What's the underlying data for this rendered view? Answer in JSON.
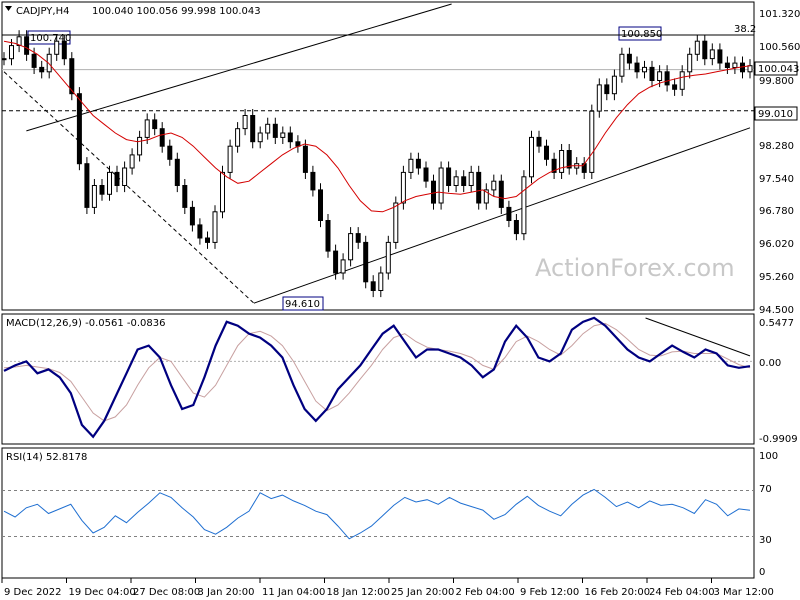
{
  "colors": {
    "background": "#ffffff",
    "candle": "#000000",
    "ma_line": "#d40000",
    "macd_line": "#000080",
    "macd_signal": "#c8a0a0",
    "rsi_line": "#1f6fd1",
    "level_box": "#000080",
    "watermark": "#c8c8c8"
  },
  "header": {
    "collapse_icon": "triangle-down-icon",
    "symbol": "CADJPY,H4",
    "ohlc": "100.040 100.056 99.998 100.043"
  },
  "watermark": "ActionForex.com",
  "chart_data": [
    {
      "type": "candlestick",
      "name": "price",
      "ylim": [
        94.5,
        101.45
      ],
      "yticks": [
        "101.320",
        "100.560",
        "99.800",
        "99.010",
        "98.280",
        "97.540",
        "96.780",
        "96.020",
        "95.260",
        "94.500"
      ],
      "current_price": "100.043",
      "level_labels": [
        "100.740",
        "100.850",
        "99.010",
        "94.610"
      ],
      "fib_label": "38.2",
      "fib_level": 100.74,
      "support_level": 99.01,
      "close_series": [
        100.2,
        100.5,
        100.7,
        100.3,
        100.0,
        99.9,
        100.3,
        100.6,
        100.2,
        99.4,
        97.8,
        96.8,
        97.3,
        97.1,
        97.6,
        97.3,
        97.7,
        98.0,
        98.4,
        98.8,
        98.6,
        98.2,
        97.9,
        97.3,
        96.8,
        96.4,
        96.1,
        96.0,
        96.7,
        97.6,
        98.2,
        98.6,
        98.9,
        98.3,
        98.5,
        98.7,
        98.4,
        98.5,
        98.3,
        98.2,
        97.6,
        97.2,
        96.5,
        95.8,
        95.3,
        95.6,
        96.2,
        96.0,
        95.1,
        94.9,
        95.3,
        96.0,
        96.9,
        97.6,
        97.9,
        97.7,
        97.4,
        96.9,
        97.7,
        97.3,
        97.5,
        97.3,
        97.6,
        96.9,
        97.2,
        97.4,
        96.8,
        96.5,
        96.2,
        97.5,
        98.4,
        98.2,
        97.9,
        97.6,
        98.1,
        97.7,
        97.8,
        97.6,
        99.0,
        99.6,
        99.4,
        99.8,
        100.3,
        100.1,
        99.9,
        100.0,
        99.7,
        99.9,
        99.6,
        99.5,
        99.9,
        100.3,
        100.6,
        100.2,
        100.4,
        100.1,
        100.0,
        100.1,
        99.9,
        100.04
      ],
      "ma_series": [
        100.6,
        100.55,
        100.45,
        100.3,
        100.1,
        99.8,
        99.5,
        99.2,
        98.9,
        98.7,
        98.5,
        98.35,
        98.3,
        98.35,
        98.45,
        98.5,
        98.4,
        98.2,
        97.95,
        97.7,
        97.5,
        97.35,
        97.4,
        97.6,
        97.8,
        98.0,
        98.15,
        98.25,
        98.2,
        98.0,
        97.7,
        97.3,
        96.95,
        96.72,
        96.7,
        96.8,
        96.95,
        97.05,
        97.1,
        97.15,
        97.12,
        97.1,
        97.15,
        97.2,
        97.05,
        97.0,
        97.05,
        97.25,
        97.45,
        97.6,
        97.7,
        97.75,
        97.75,
        98.1,
        98.5,
        98.85,
        99.15,
        99.4,
        99.55,
        99.65,
        99.72,
        99.78,
        99.82,
        99.85,
        99.9,
        99.95,
        100.0,
        100.04
      ],
      "trendlines": {
        "upper_channel": [
          [
            3,
            98.55
          ],
          [
            60,
            101.45
          ]
        ],
        "lower_channel": [
          [
            33.5,
            94.61
          ],
          [
            100,
            98.62
          ]
        ],
        "falling_dashed": [
          [
            0,
            99.9
          ],
          [
            33.5,
            94.61
          ]
        ]
      }
    },
    {
      "type": "line",
      "name": "MACD",
      "title": "MACD(12,26,9) -0.0561 -0.0836",
      "ylim": [
        -0.9909,
        0.5477
      ],
      "yticks": [
        "0.5477",
        "0.00",
        "-0.9909"
      ],
      "macd": [
        -0.12,
        -0.05,
        0.0,
        -0.15,
        -0.1,
        -0.2,
        -0.4,
        -0.8,
        -0.95,
        -0.75,
        -0.45,
        -0.15,
        0.15,
        0.2,
        0.05,
        -0.3,
        -0.6,
        -0.55,
        -0.2,
        0.2,
        0.5,
        0.45,
        0.35,
        0.3,
        0.2,
        0.05,
        -0.3,
        -0.6,
        -0.75,
        -0.6,
        -0.35,
        -0.2,
        -0.05,
        0.15,
        0.35,
        0.45,
        0.25,
        0.05,
        0.15,
        0.15,
        0.1,
        0.05,
        -0.05,
        -0.2,
        -0.1,
        0.25,
        0.45,
        0.3,
        0.05,
        0.0,
        0.1,
        0.4,
        0.5,
        0.55,
        0.45,
        0.3,
        0.15,
        0.05,
        0.0,
        0.1,
        0.2,
        0.12,
        0.05,
        0.15,
        0.1,
        -0.05,
        -0.08,
        -0.06
      ],
      "signal": [
        -0.08,
        -0.07,
        -0.05,
        -0.07,
        -0.09,
        -0.14,
        -0.25,
        -0.45,
        -0.65,
        -0.75,
        -0.7,
        -0.55,
        -0.3,
        -0.08,
        0.05,
        0.0,
        -0.2,
        -0.4,
        -0.45,
        -0.3,
        -0.05,
        0.2,
        0.35,
        0.38,
        0.32,
        0.2,
        0.0,
        -0.25,
        -0.5,
        -0.62,
        -0.55,
        -0.4,
        -0.22,
        -0.05,
        0.15,
        0.3,
        0.35,
        0.25,
        0.18,
        0.15,
        0.13,
        0.1,
        0.05,
        -0.05,
        -0.1,
        0.05,
        0.25,
        0.32,
        0.25,
        0.15,
        0.08,
        0.2,
        0.35,
        0.45,
        0.48,
        0.4,
        0.28,
        0.15,
        0.08,
        0.07,
        0.12,
        0.13,
        0.1,
        0.1,
        0.1,
        0.03,
        -0.04,
        -0.08
      ],
      "trendline": [
        [
          86,
          0.5477
        ],
        [
          100,
          0.07
        ]
      ]
    },
    {
      "type": "line",
      "name": "RSI",
      "title": "RSI(14) 52.8178",
      "ylim": [
        0,
        100
      ],
      "yticks": [
        "100",
        "70",
        "30",
        "0"
      ],
      "levels": [
        70,
        30
      ],
      "values": [
        52,
        47,
        55,
        58,
        50,
        54,
        58,
        44,
        33,
        38,
        48,
        42,
        51,
        59,
        68,
        64,
        55,
        47,
        36,
        32,
        38,
        46,
        52,
        68,
        63,
        66,
        61,
        57,
        52,
        49,
        39,
        28,
        33,
        39,
        48,
        57,
        64,
        60,
        62,
        58,
        64,
        59,
        56,
        53,
        45,
        49,
        58,
        65,
        57,
        52,
        48,
        58,
        66,
        71,
        64,
        56,
        60,
        55,
        61,
        57,
        58,
        55,
        50,
        62,
        58,
        48,
        54,
        52.8
      ]
    }
  ],
  "x_axis": {
    "labels": [
      "9 Dec 2022",
      "19 Dec 04:00",
      "27 Dec 08:00",
      "3 Jan 20:00",
      "11 Jan 04:00",
      "18 Jan 12:00",
      "25 Jan 20:00",
      "2 Feb 04:00",
      "9 Feb 12:00",
      "16 Feb 20:00",
      "24 Feb 04:00",
      "3 Mar 12:00"
    ]
  }
}
